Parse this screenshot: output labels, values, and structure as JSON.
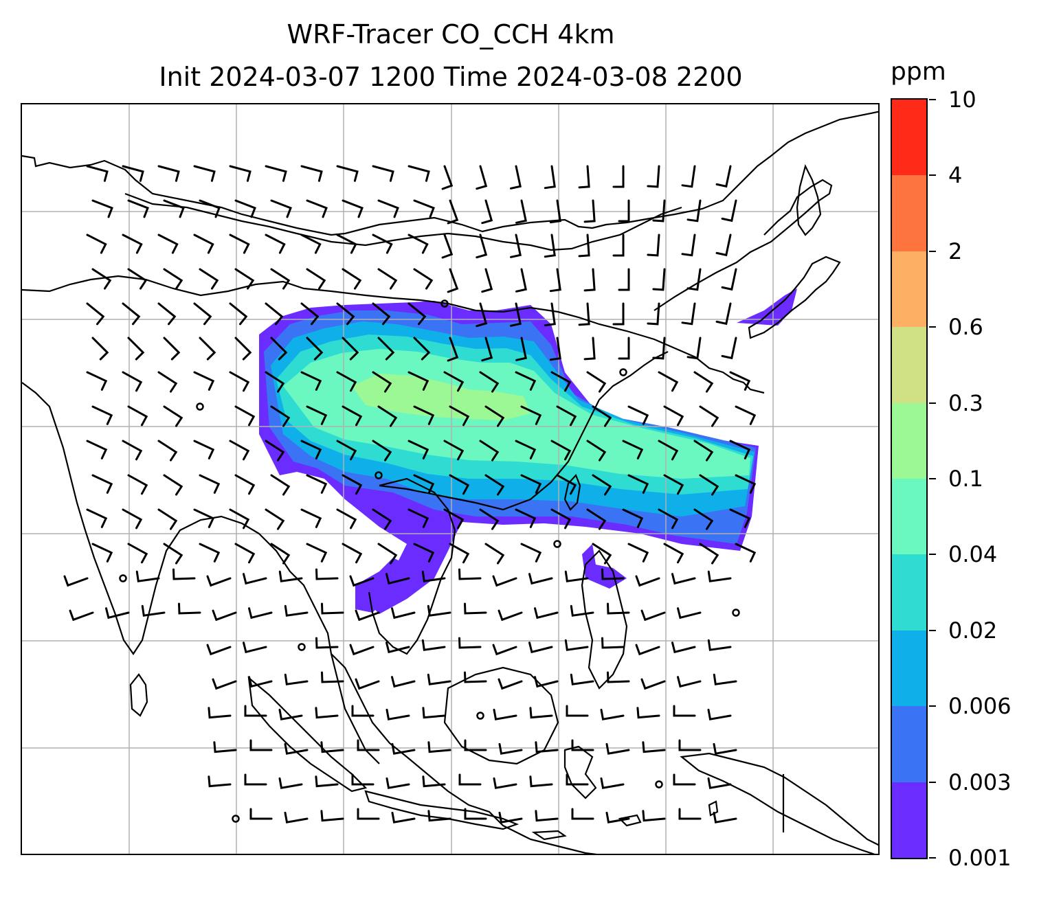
{
  "title": {
    "line1": "WRF-Tracer CO_CCH 4km",
    "line2": "Init 2024-03-07 1200 Time 2024-03-08 2200"
  },
  "map": {
    "projection": "lat-lon",
    "gridlines": true,
    "gridline_color": "#b0b0b0",
    "coastline_color": "#000000",
    "barb_color": "#000000",
    "field": "CO_CCH tracer concentration",
    "plume_description": "Tracer plume extends from southern China eastward across the East China Sea, strongest near central-eastern China"
  },
  "colorbar": {
    "unit": "ppm",
    "tick_labels": [
      "0.001",
      "0.003",
      "0.006",
      "0.02",
      "0.04",
      "0.1",
      "0.3",
      "0.6",
      "2",
      "4",
      "10"
    ],
    "colors": [
      "#6a2cff",
      "#3a74f4",
      "#0fb0ea",
      "#2fdcd2",
      "#6af8c0",
      "#9cf894",
      "#d0e084",
      "#fdb063",
      "#fd743e",
      "#ff2a18"
    ]
  }
}
